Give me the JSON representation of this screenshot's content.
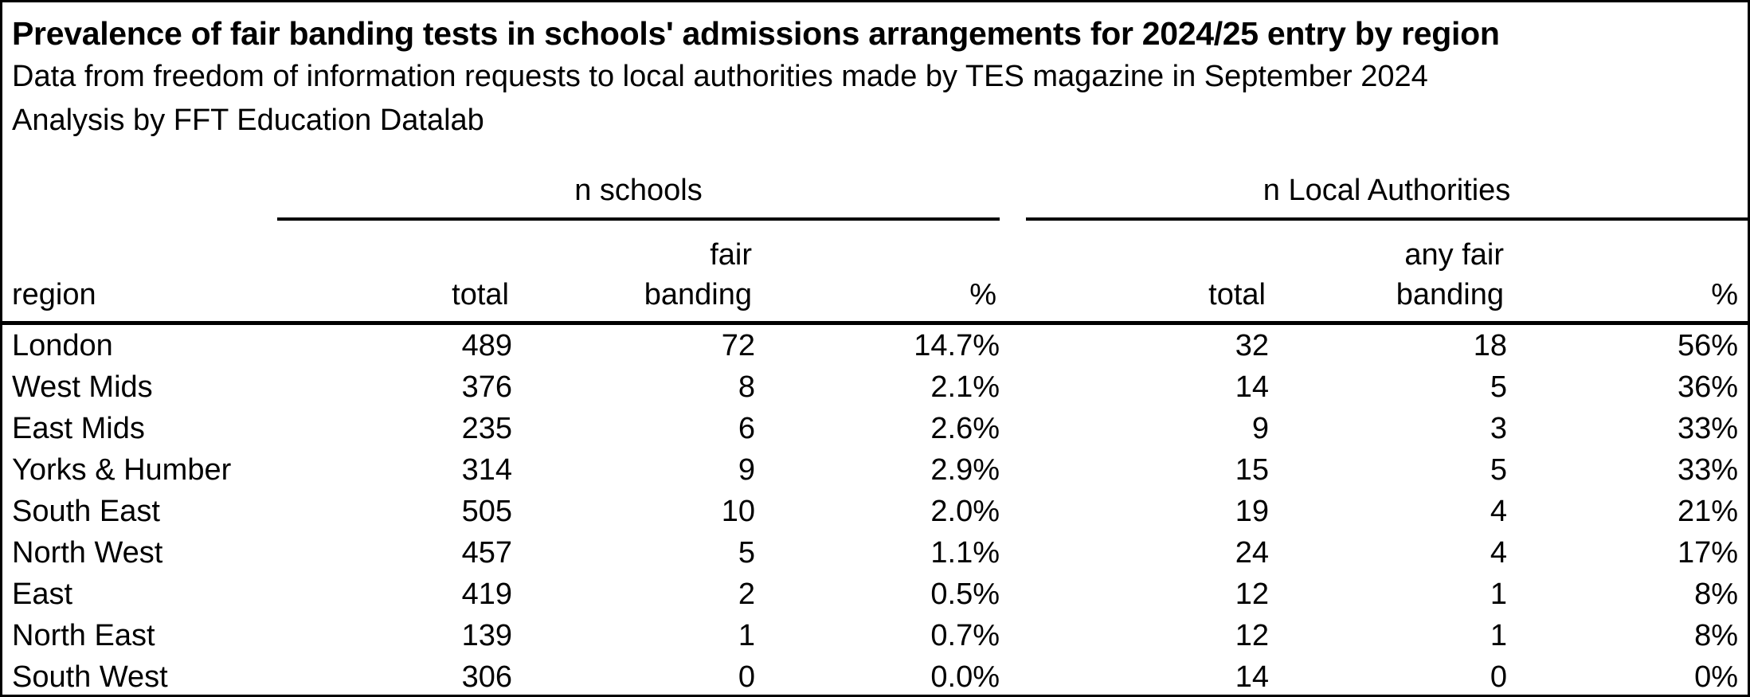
{
  "header": {
    "title": "Prevalence of fair banding tests in schools' admissions arrangements for 2024/25 entry by region",
    "subtitle": "Data from freedom of information requests to local authorities made by TES magazine in September 2024",
    "attribution": "Analysis by FFT Education Datalab"
  },
  "colors": {
    "text": "#000000",
    "background": "#ffffff",
    "rules": "#000000"
  },
  "chart_data": {
    "type": "table",
    "title": "Prevalence of fair banding tests in schools' admissions arrangements for 2024/25 entry by region",
    "subtitle": "Data from freedom of information requests to local authorities made by TES magazine in September 2024",
    "attribution": "Analysis by FFT Education Datalab",
    "column_groups": [
      {
        "label": "n schools",
        "span": 3
      },
      {
        "label": "n Local Authorities",
        "span": 3
      }
    ],
    "columns": [
      "region",
      "total",
      "fair\nbanding",
      "%",
      "total",
      "any fair\nbanding",
      "%"
    ],
    "rows": [
      [
        "London",
        "489",
        "72",
        "14.7%",
        "32",
        "18",
        "56%"
      ],
      [
        "West Mids",
        "376",
        "8",
        "2.1%",
        "14",
        "5",
        "36%"
      ],
      [
        "East Mids",
        "235",
        "6",
        "2.6%",
        "9",
        "3",
        "33%"
      ],
      [
        "Yorks & Humber",
        "314",
        "9",
        "2.9%",
        "15",
        "5",
        "33%"
      ],
      [
        "South East",
        "505",
        "10",
        "2.0%",
        "19",
        "4",
        "21%"
      ],
      [
        "North West",
        "457",
        "5",
        "1.1%",
        "24",
        "4",
        "17%"
      ],
      [
        "East",
        "419",
        "2",
        "0.5%",
        "12",
        "1",
        "8%"
      ],
      [
        "North East",
        "139",
        "1",
        "0.7%",
        "12",
        "1",
        "8%"
      ],
      [
        "South West",
        "306",
        "0",
        "0.0%",
        "14",
        "0",
        "0%"
      ]
    ]
  }
}
